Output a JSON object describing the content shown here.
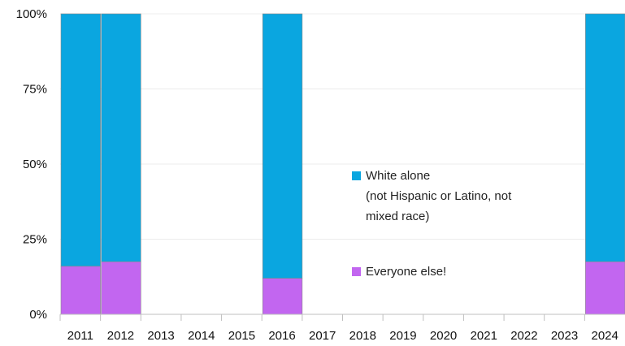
{
  "chart_data": {
    "type": "bar",
    "stacked": true,
    "normalized": true,
    "categories": [
      "2011",
      "2012",
      "2013",
      "2014",
      "2015",
      "2016",
      "2017",
      "2018",
      "2019",
      "2020",
      "2021",
      "2022",
      "2023",
      "2024"
    ],
    "series": [
      {
        "name": "Everyone else!",
        "color": "#c266f0",
        "values": [
          16,
          17.5,
          null,
          null,
          null,
          12,
          null,
          null,
          null,
          null,
          null,
          null,
          null,
          17.5
        ]
      },
      {
        "name_lines": [
          "White alone",
          "(not Hispanic or Latino, not",
          "mixed race)"
        ],
        "color": "#0aa6e0",
        "values": [
          84,
          82.5,
          null,
          null,
          null,
          88,
          null,
          null,
          null,
          null,
          null,
          null,
          null,
          82.5
        ]
      }
    ],
    "y_ticks": [
      "0%",
      "25%",
      "50%",
      "75%",
      "100%"
    ],
    "ylim": [
      0,
      100
    ],
    "legend_position": "center"
  }
}
